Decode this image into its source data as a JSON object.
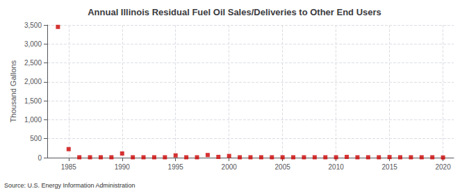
{
  "chart_data": {
    "type": "scatter",
    "title": "Annual Illinois Residual Fuel Oil Sales/Deliveries to Other End Users",
    "ylabel": "Thousand Gallons",
    "annotations": [
      "Source: U.S. Energy Information Administration"
    ],
    "color": "#cc0000",
    "marker": "square",
    "grid": true,
    "xlim": [
      1983,
      2021
    ],
    "xticks": [
      1985,
      1990,
      1995,
      2000,
      2005,
      2010,
      2015,
      2020
    ],
    "ylim": [
      0,
      3500
    ],
    "yticks": [
      0,
      500,
      {
        "value": 1000,
        "label": "1,000"
      },
      {
        "value": 1500,
        "label": "1,500"
      },
      {
        "value": 2000,
        "label": "2,000"
      },
      {
        "value": 2500,
        "label": "2,500"
      },
      {
        "value": 3000,
        "label": "3,000"
      },
      {
        "value": 3500,
        "label": "3,500"
      }
    ],
    "x": [
      1984,
      1985,
      1986,
      1987,
      1988,
      1989,
      1990,
      1991,
      1992,
      1993,
      1994,
      1995,
      1996,
      1997,
      1998,
      1999,
      2000,
      2001,
      2002,
      2003,
      2004,
      2005,
      2006,
      2007,
      2008,
      2009,
      2010,
      2011,
      2012,
      2013,
      2014,
      2015,
      2016,
      2017,
      2018,
      2019,
      2020
    ],
    "values": [
      3450,
      225,
      10,
      10,
      10,
      10,
      110,
      10,
      10,
      10,
      10,
      60,
      10,
      10,
      70,
      20,
      45,
      10,
      10,
      10,
      10,
      10,
      10,
      10,
      10,
      10,
      10,
      20,
      10,
      10,
      10,
      15,
      10,
      10,
      10,
      10,
      5
    ]
  }
}
